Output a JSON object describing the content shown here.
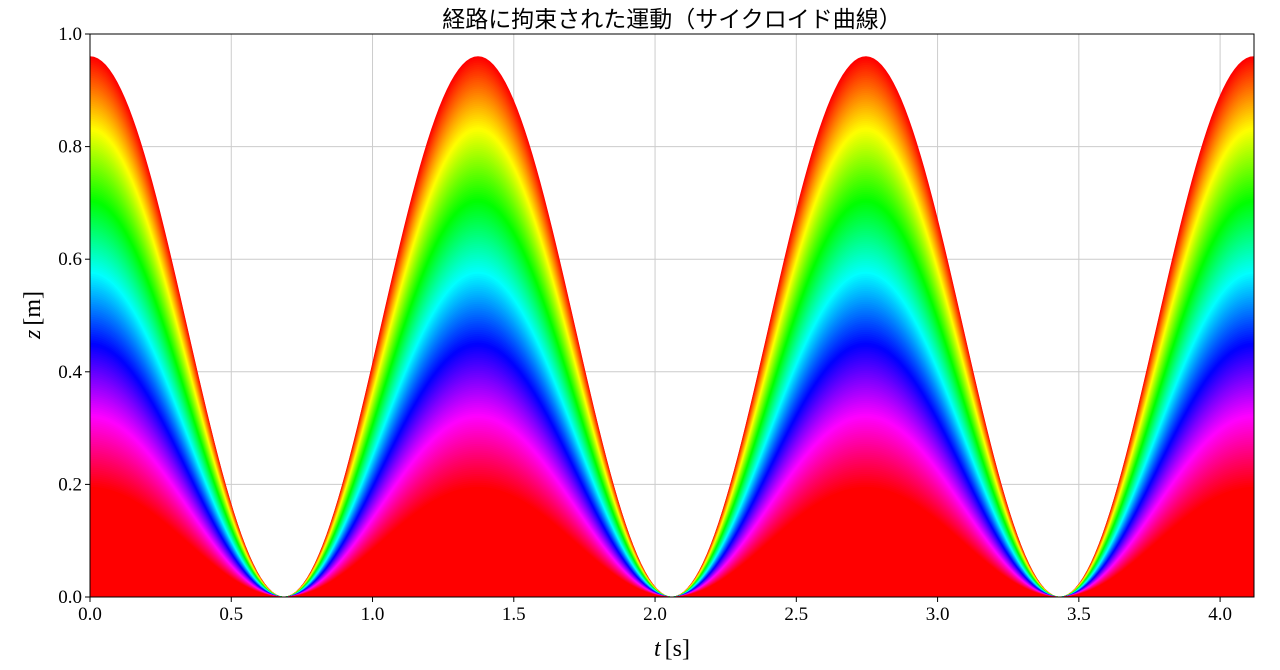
{
  "chart_data": {
    "type": "area",
    "title": "経路に拘束された運動（サイクロイド曲線）",
    "xlabel_var": "t",
    "xlabel_unit": "[s]",
    "ylabel_var": "z",
    "ylabel_unit": "[m]",
    "xlim": [
      0.0,
      4.12
    ],
    "ylim": [
      0.0,
      1.0
    ],
    "xticks": [
      "0.0",
      "0.5",
      "1.0",
      "1.5",
      "2.0",
      "2.5",
      "3.0",
      "3.5",
      "4.0"
    ],
    "xtick_values": [
      0.0,
      0.5,
      1.0,
      1.5,
      2.0,
      2.5,
      3.0,
      3.5,
      4.0
    ],
    "yticks": [
      "0.0",
      "0.2",
      "0.4",
      "0.6",
      "0.8",
      "1.0"
    ],
    "ytick_values": [
      0.0,
      0.2,
      0.4,
      0.6,
      0.8,
      1.0
    ],
    "grid": true,
    "period_s": 1.373,
    "z_max_top": 0.96,
    "z_max_bottom": 0.195,
    "z_min": 0.0,
    "colormap": [
      "#ff0000",
      "#ff00ff",
      "#0000ff",
      "#00ffff",
      "#00ff00",
      "#ffff00",
      "#ff0000"
    ],
    "series": [
      {
        "x": [
          0.0,
          0.686,
          1.373,
          2.059,
          2.746,
          3.432,
          4.12
        ],
        "y": [
          0.96,
          0.0,
          0.96,
          0.0,
          0.96,
          0.0,
          0.96
        ]
      },
      {
        "x": [
          0.0,
          0.686,
          1.373,
          2.059,
          2.746,
          3.432,
          4.12
        ],
        "y": [
          0.195,
          0.0,
          0.195,
          0.0,
          0.195,
          0.0,
          0.195
        ]
      }
    ]
  }
}
